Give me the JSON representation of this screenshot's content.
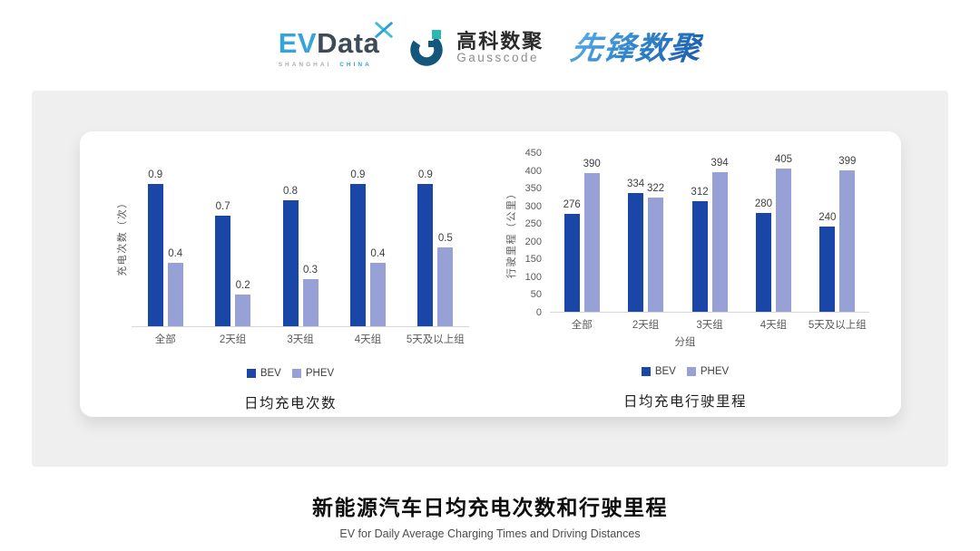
{
  "header": {
    "evdata": {
      "ev": "EV",
      "data": "Data",
      "tagline_left": "SHANGHAI",
      "tagline_right": "CHINA"
    },
    "gausscode": {
      "name_cn": "高科数聚",
      "name_en": "Gausscode"
    },
    "pioneer": {
      "name": "先锋数聚"
    }
  },
  "colors": {
    "bev": "#1A46A8",
    "phev": "#97A1D6",
    "axis_line": "#D6D6D6",
    "tick_text": "#595959",
    "value_text": "#3F3F3F",
    "panel_bg": "#EFEFEF",
    "evdata_blue": "#35A3DC",
    "evdata_slate": "#3E4A59",
    "gauss_dark": "#15567D",
    "gauss_teal": "#2BB8B3",
    "pioneer_light": "#57ADE9",
    "pioneer_dark": "#1B5CAD"
  },
  "chart_data": [
    {
      "type": "bar",
      "title": "日均充电次数",
      "ylabel": "充电次数（次）",
      "xlabel": "",
      "categories": [
        "全部",
        "2天组",
        "3天组",
        "4天组",
        "5天及以上组"
      ],
      "series": [
        {
          "name": "BEV",
          "color_key": "bev",
          "values": [
            0.9,
            0.7,
            0.8,
            0.9,
            0.9
          ]
        },
        {
          "name": "PHEV",
          "color_key": "phev",
          "values": [
            0.4,
            0.2,
            0.3,
            0.4,
            0.5
          ]
        }
      ],
      "ylim": [
        0,
        1.15
      ],
      "show_y_ticks": false,
      "show_value_labels": true,
      "value_decimals": 1,
      "grid": false,
      "legend_position": "bottom"
    },
    {
      "type": "bar",
      "title": "日均充电行驶里程",
      "ylabel": "行驶里程（公里）",
      "xlabel": "分组",
      "categories": [
        "全部",
        "2天组",
        "3天组",
        "4天组",
        "5天及以上组"
      ],
      "series": [
        {
          "name": "BEV",
          "color_key": "bev",
          "values": [
            276,
            334,
            312,
            280,
            240
          ]
        },
        {
          "name": "PHEV",
          "color_key": "phev",
          "values": [
            390,
            322,
            394,
            405,
            399
          ]
        }
      ],
      "ylim": [
        0,
        450
      ],
      "ytick_step": 50,
      "show_y_ticks": true,
      "show_value_labels": true,
      "value_decimals": 0,
      "grid": false,
      "legend_position": "bottom"
    }
  ],
  "footer": {
    "title": "新能源汽车日均充电次数和行驶里程",
    "subtitle": "EV for Daily Average Charging Times and Driving Distances"
  }
}
